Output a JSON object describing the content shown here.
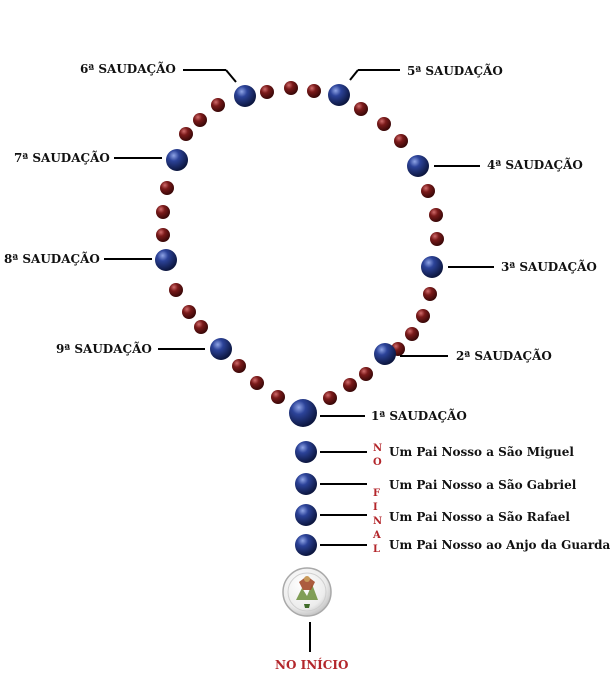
{
  "colors": {
    "blue_bead": "#1b2f78",
    "red_bead": "#6e1414",
    "leader_line": "#000000",
    "accent_red": "#b3262b"
  },
  "greetings": [
    "1ª SAUDAÇÃO",
    "2ª SAUDAÇÃO",
    "3ª SAUDAÇÃO",
    "4ª SAUDAÇÃO",
    "5ª SAUDAÇÃO",
    "6ª SAUDAÇÃO",
    "7ª SAUDAÇÃO",
    "8ª SAUDAÇÃO",
    "9ª SAUDAÇÃO"
  ],
  "prayers": [
    "Um Pai Nosso a São Miguel",
    "Um Pai Nosso a São Gabriel",
    "Um Pai Nosso a São Rafael",
    "Um Pai Nosso ao Anjo da Guarda"
  ],
  "vertical_no": [
    "N",
    "O"
  ],
  "vertical_final": [
    "F",
    "I",
    "N",
    "A",
    "L"
  ],
  "start_label": "NO INÍCIO",
  "medal": {
    "icon": "saint-michael-medal-icon"
  }
}
